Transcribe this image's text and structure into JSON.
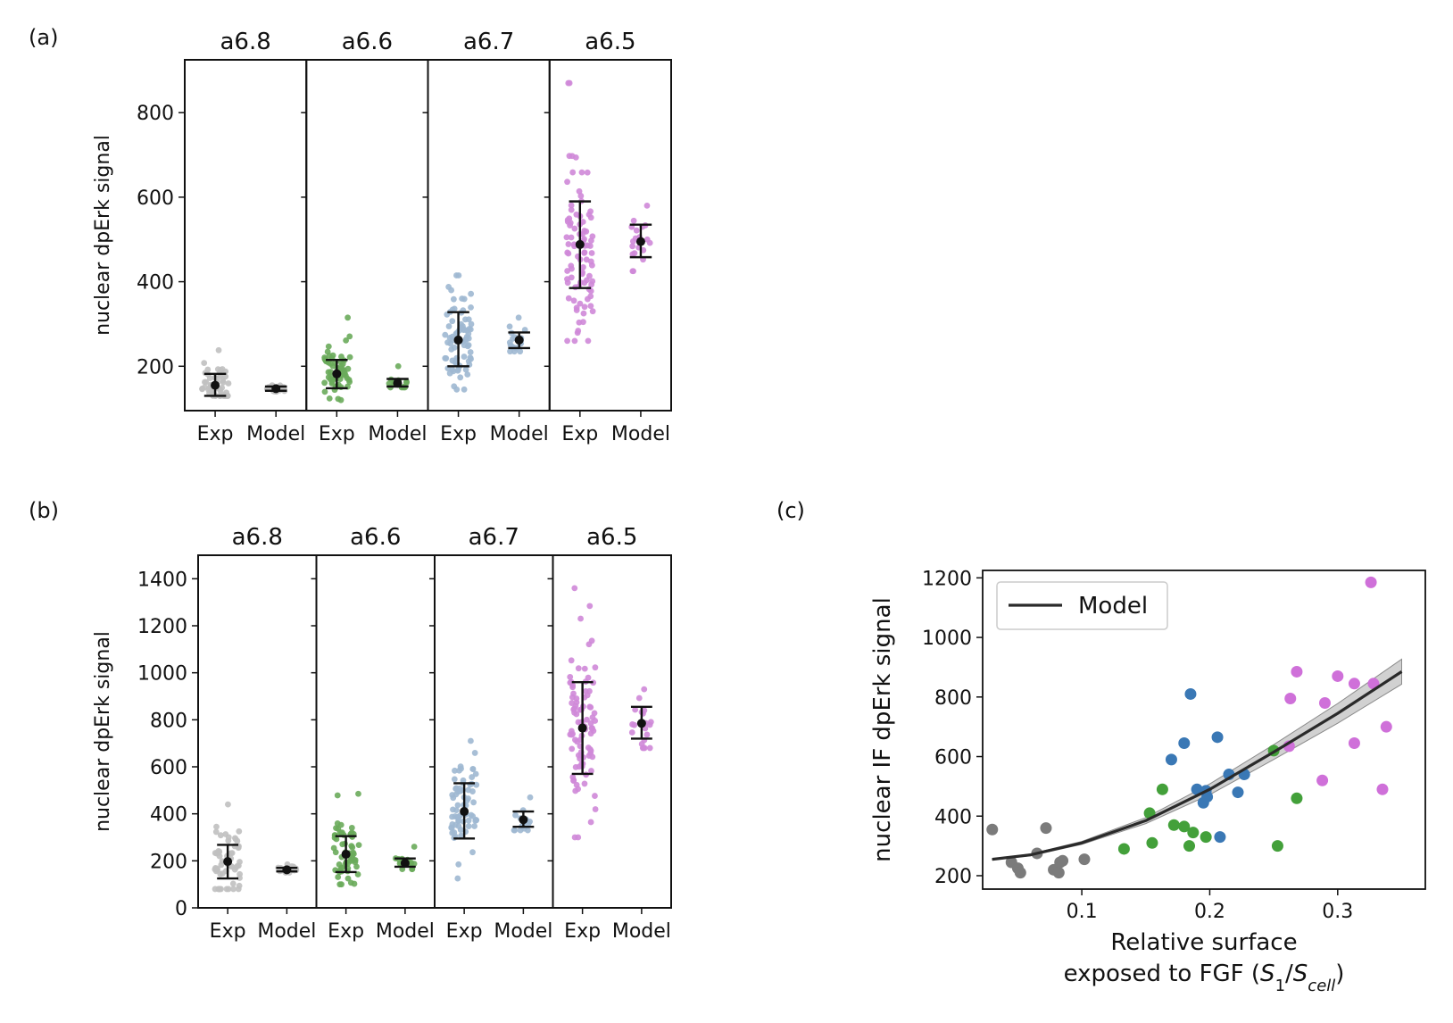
{
  "chart_data": [
    {
      "panel_label": "(a)",
      "type": "scatter",
      "ylabel": "nuclear dpErk signal",
      "ylim": [
        95,
        925
      ],
      "yticks": [
        200,
        400,
        600,
        800
      ],
      "categories": [
        "Exp",
        "Model"
      ],
      "colors": {
        "a6.8": "#c0c0c0",
        "a6.6": "#6aab5b",
        "a6.7": "#9fb8d2",
        "a6.5": "#cf88d8"
      },
      "facets": [
        {
          "name": "a6.8",
          "Exp": {
            "mean": 155,
            "err_low": 130,
            "err_high": 182,
            "n": 60,
            "min": 130,
            "max": 238
          },
          "Model": {
            "mean": 147,
            "err_low": 142,
            "err_high": 152,
            "n": 18,
            "min": 140,
            "max": 155
          }
        },
        {
          "name": "a6.6",
          "Exp": {
            "mean": 182,
            "err_low": 148,
            "err_high": 215,
            "n": 60,
            "min": 120,
            "max": 315
          },
          "Model": {
            "mean": 160,
            "err_low": 152,
            "err_high": 170,
            "n": 15,
            "min": 150,
            "max": 200
          }
        },
        {
          "name": "a6.7",
          "Exp": {
            "mean": 262,
            "err_low": 200,
            "err_high": 328,
            "n": 80,
            "min": 145,
            "max": 415
          },
          "Model": {
            "mean": 262,
            "err_low": 243,
            "err_high": 280,
            "n": 18,
            "min": 235,
            "max": 315
          }
        },
        {
          "name": "a6.5",
          "Exp": {
            "mean": 488,
            "err_low": 385,
            "err_high": 590,
            "n": 90,
            "min": 260,
            "max": 870
          },
          "Model": {
            "mean": 495,
            "err_low": 458,
            "err_high": 535,
            "n": 20,
            "min": 425,
            "max": 580
          }
        }
      ]
    },
    {
      "panel_label": "(b)",
      "type": "scatter",
      "ylabel": "nuclear dpErk signal",
      "ylim": [
        0,
        1500
      ],
      "yticks": [
        0,
        200,
        400,
        600,
        800,
        1000,
        1200,
        1400
      ],
      "categories": [
        "Exp",
        "Model"
      ],
      "colors": {
        "a6.8": "#c0c0c0",
        "a6.6": "#6aab5b",
        "a6.7": "#9fb8d2",
        "a6.5": "#cf88d8"
      },
      "facets": [
        {
          "name": "a6.8",
          "Exp": {
            "mean": 197,
            "err_low": 125,
            "err_high": 268,
            "n": 60,
            "min": 80,
            "max": 440
          },
          "Model": {
            "mean": 162,
            "err_low": 155,
            "err_high": 170,
            "n": 15,
            "min": 150,
            "max": 185
          }
        },
        {
          "name": "a6.6",
          "Exp": {
            "mean": 228,
            "err_low": 152,
            "err_high": 305,
            "n": 60,
            "min": 100,
            "max": 485
          },
          "Model": {
            "mean": 190,
            "err_low": 175,
            "err_high": 210,
            "n": 15,
            "min": 165,
            "max": 260
          }
        },
        {
          "name": "a6.7",
          "Exp": {
            "mean": 410,
            "err_low": 295,
            "err_high": 530,
            "n": 70,
            "min": 125,
            "max": 710
          },
          "Model": {
            "mean": 375,
            "err_low": 345,
            "err_high": 410,
            "n": 15,
            "min": 330,
            "max": 470
          }
        },
        {
          "name": "a6.5",
          "Exp": {
            "mean": 765,
            "err_low": 570,
            "err_high": 960,
            "n": 90,
            "min": 300,
            "max": 1360
          },
          "Model": {
            "mean": 785,
            "err_low": 720,
            "err_high": 855,
            "n": 20,
            "min": 680,
            "max": 930
          }
        }
      ]
    },
    {
      "panel_label": "(c)",
      "type": "scatter",
      "xlabel_line1": "Relative surface",
      "xlabel_line2_prefix": "exposed to FGF (",
      "xlabel_s1": "S",
      "xlabel_s1_sub": "1",
      "xlabel_sep": "/",
      "xlabel_s2": "S",
      "xlabel_s2_sub": "cell",
      "xlabel_close": ")",
      "ylabel": "nuclear IF dpErk signal",
      "xlim": [
        0.0225,
        0.3685
      ],
      "ylim": [
        155,
        1225
      ],
      "xticks": [
        0.1,
        0.2,
        0.3
      ],
      "yticks": [
        200,
        400,
        600,
        800,
        1000,
        1200
      ],
      "legend": {
        "position": "top-left",
        "label": "Model"
      },
      "line": {
        "name": "Model",
        "x": [
          0.03,
          0.06,
          0.1,
          0.15,
          0.2,
          0.25,
          0.3,
          0.35
        ],
        "y": [
          255,
          270,
          310,
          385,
          490,
          615,
          745,
          885
        ]
      },
      "band_halfwidth": [
        2,
        3,
        5,
        10,
        18,
        25,
        33,
        42
      ],
      "series": [
        {
          "color": "#7b7b7b",
          "points": [
            [
              0.03,
              355
            ],
            [
              0.045,
              245
            ],
            [
              0.05,
              225
            ],
            [
              0.052,
              210
            ],
            [
              0.065,
              275
            ],
            [
              0.072,
              360
            ],
            [
              0.078,
              220
            ],
            [
              0.082,
              210
            ],
            [
              0.083,
              245
            ],
            [
              0.085,
              250
            ],
            [
              0.102,
              255
            ]
          ]
        },
        {
          "color": "#3a78b5",
          "points": [
            [
              0.17,
              590
            ],
            [
              0.18,
              645
            ],
            [
              0.185,
              810
            ],
            [
              0.19,
              490
            ],
            [
              0.195,
              445
            ],
            [
              0.197,
              485
            ],
            [
              0.198,
              465
            ],
            [
              0.206,
              665
            ],
            [
              0.208,
              330
            ],
            [
              0.215,
              540
            ],
            [
              0.222,
              480
            ],
            [
              0.227,
              540
            ]
          ]
        },
        {
          "color": "#43a03a",
          "points": [
            [
              0.133,
              290
            ],
            [
              0.153,
              410
            ],
            [
              0.155,
              310
            ],
            [
              0.163,
              490
            ],
            [
              0.172,
              370
            ],
            [
              0.18,
              365
            ],
            [
              0.184,
              300
            ],
            [
              0.187,
              345
            ],
            [
              0.197,
              330
            ],
            [
              0.25,
              620
            ],
            [
              0.253,
              300
            ],
            [
              0.268,
              460
            ]
          ]
        },
        {
          "color": "#cf70d9",
          "points": [
            [
              0.262,
              635
            ],
            [
              0.263,
              795
            ],
            [
              0.268,
              885
            ],
            [
              0.288,
              520
            ],
            [
              0.29,
              780
            ],
            [
              0.3,
              870
            ],
            [
              0.313,
              645
            ],
            [
              0.313,
              845
            ],
            [
              0.326,
              1185
            ],
            [
              0.328,
              845
            ],
            [
              0.335,
              490
            ],
            [
              0.338,
              700
            ]
          ]
        }
      ]
    }
  ]
}
